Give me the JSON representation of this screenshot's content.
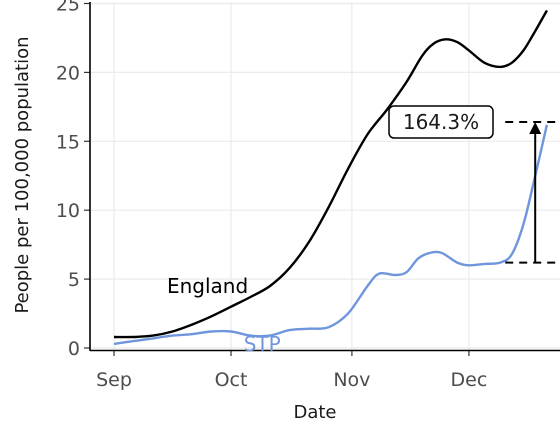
{
  "chart_data": {
    "type": "line",
    "xlabel": "Date",
    "ylabel": "People per 100,000 population",
    "ylim": [
      0,
      25
    ],
    "y_ticks": [
      0,
      5,
      10,
      15,
      20,
      25
    ],
    "x_ticks": [
      {
        "date": "2020-09-01",
        "label": "Sep"
      },
      {
        "date": "2020-10-01",
        "label": "Oct"
      },
      {
        "date": "2020-11-01",
        "label": "Nov"
      },
      {
        "date": "2020-12-01",
        "label": "Dec"
      }
    ],
    "grid": "horizontal",
    "series": [
      {
        "name": "England",
        "color": "#000000",
        "points": [
          [
            "2020-09-01",
            0.8
          ],
          [
            "2020-09-06",
            0.8
          ],
          [
            "2020-09-11",
            0.9
          ],
          [
            "2020-09-16",
            1.2
          ],
          [
            "2020-09-21",
            1.7
          ],
          [
            "2020-09-26",
            2.3
          ],
          [
            "2020-10-01",
            3.0
          ],
          [
            "2020-10-06",
            3.7
          ],
          [
            "2020-10-11",
            4.5
          ],
          [
            "2020-10-16",
            5.8
          ],
          [
            "2020-10-21",
            7.7
          ],
          [
            "2020-10-26",
            10.2
          ],
          [
            "2020-10-31",
            13.0
          ],
          [
            "2020-11-05",
            15.5
          ],
          [
            "2020-11-10",
            17.3
          ],
          [
            "2020-11-15",
            19.3
          ],
          [
            "2020-11-19",
            21.2
          ],
          [
            "2020-11-22",
            22.1
          ],
          [
            "2020-11-25",
            22.4
          ],
          [
            "2020-11-28",
            22.2
          ],
          [
            "2020-12-01",
            21.6
          ],
          [
            "2020-12-05",
            20.7
          ],
          [
            "2020-12-09",
            20.4
          ],
          [
            "2020-12-12",
            20.7
          ],
          [
            "2020-12-15",
            21.6
          ],
          [
            "2020-12-18",
            23.0
          ],
          [
            "2020-12-21",
            24.5
          ]
        ]
      },
      {
        "name": "STP",
        "color": "#6f96dd",
        "points": [
          [
            "2020-09-01",
            0.3
          ],
          [
            "2020-09-06",
            0.5
          ],
          [
            "2020-09-11",
            0.7
          ],
          [
            "2020-09-16",
            0.9
          ],
          [
            "2020-09-21",
            1.0
          ],
          [
            "2020-09-26",
            1.2
          ],
          [
            "2020-10-01",
            1.2
          ],
          [
            "2020-10-06",
            0.9
          ],
          [
            "2020-10-11",
            0.9
          ],
          [
            "2020-10-16",
            1.3
          ],
          [
            "2020-10-21",
            1.4
          ],
          [
            "2020-10-26",
            1.5
          ],
          [
            "2020-10-31",
            2.5
          ],
          [
            "2020-11-05",
            4.5
          ],
          [
            "2020-11-08",
            5.4
          ],
          [
            "2020-11-12",
            5.3
          ],
          [
            "2020-11-15",
            5.5
          ],
          [
            "2020-11-18",
            6.5
          ],
          [
            "2020-11-21",
            6.9
          ],
          [
            "2020-11-24",
            6.9
          ],
          [
            "2020-11-28",
            6.2
          ],
          [
            "2020-12-01",
            6.0
          ],
          [
            "2020-12-05",
            6.1
          ],
          [
            "2020-12-09",
            6.2
          ],
          [
            "2020-12-12",
            6.8
          ],
          [
            "2020-12-15",
            9.0
          ],
          [
            "2020-12-18",
            12.5
          ],
          [
            "2020-12-21",
            16.2
          ]
        ]
      }
    ],
    "series_labels": [
      {
        "text": "England",
        "date": "2020-09-25",
        "y": 4.5
      },
      {
        "text": "STP",
        "date": "2020-10-09",
        "y": 0.3
      }
    ],
    "annotation": {
      "text": "164.3%",
      "date": "2020-12-18",
      "y_from": 6.2,
      "y_to": 16.4
    }
  }
}
